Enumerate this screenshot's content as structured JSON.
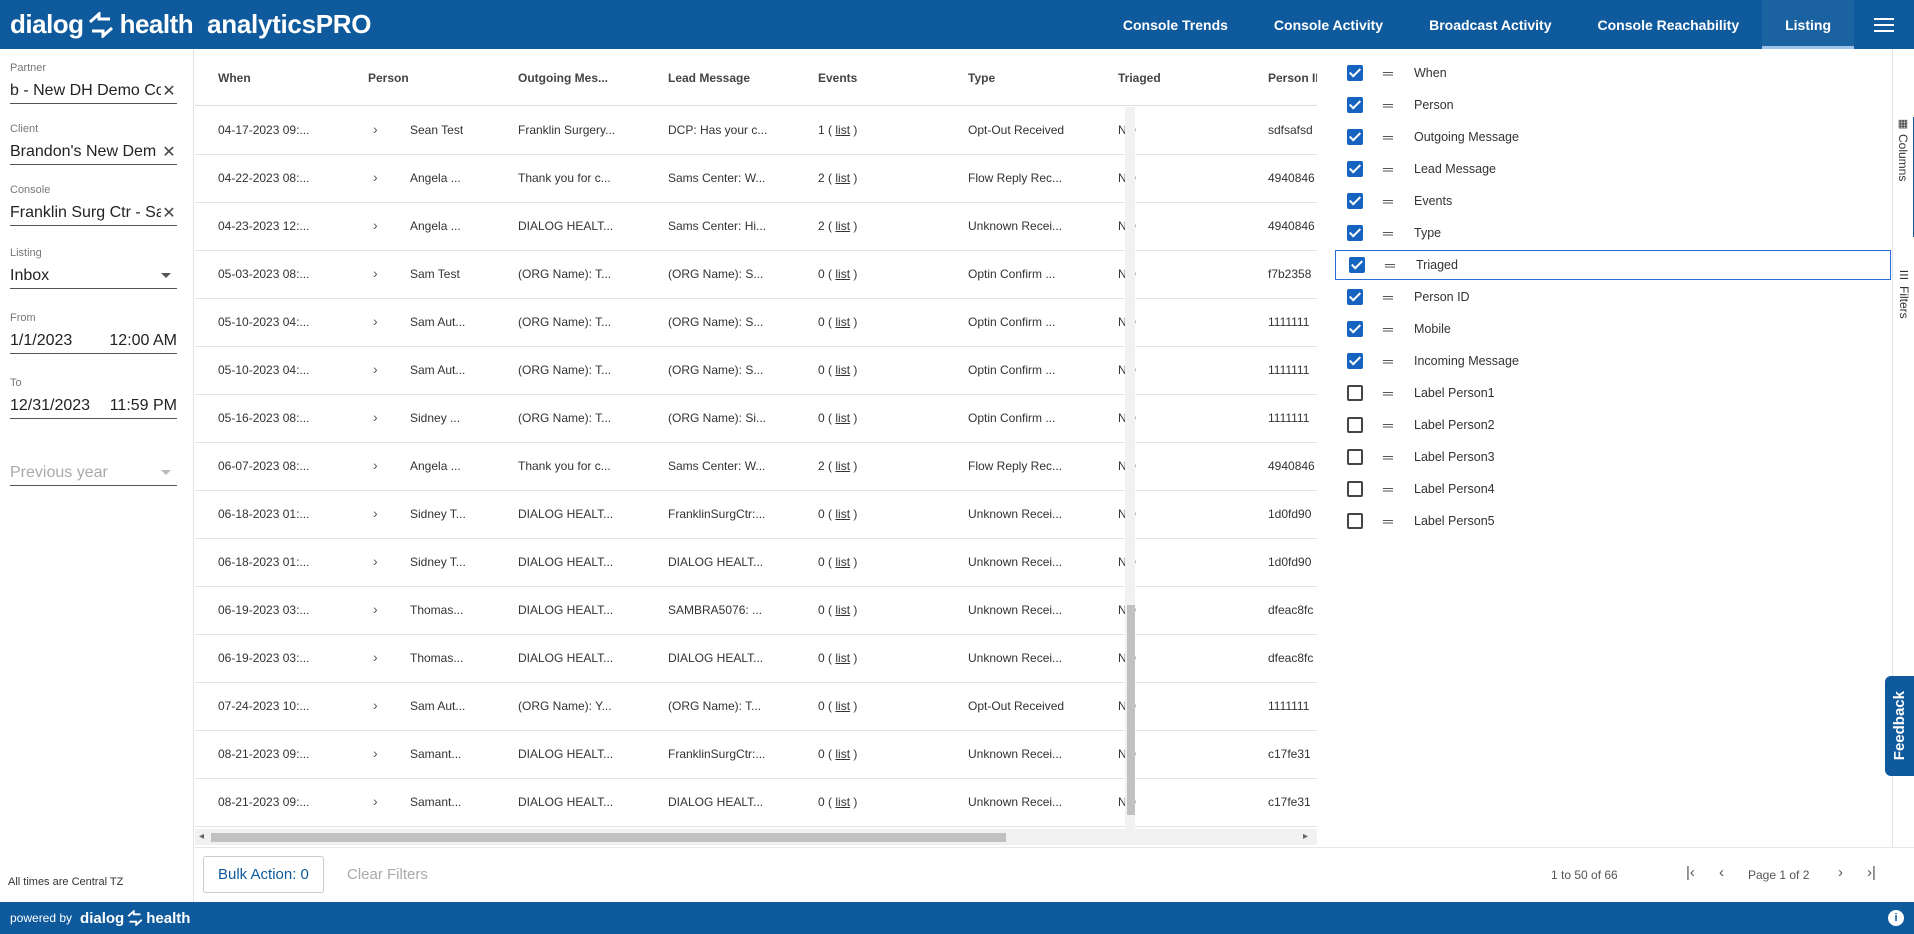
{
  "brand": {
    "dialog": "dialog",
    "health": "health",
    "suffix": "analyticsPRO"
  },
  "nav": {
    "items": [
      "Console Trends",
      "Console Activity",
      "Broadcast Activity",
      "Console Reachability",
      "Listing"
    ],
    "active": "Listing"
  },
  "sidebar": {
    "partner": {
      "label": "Partner",
      "value": "b - New DH Demo Co"
    },
    "client": {
      "label": "Client",
      "value": "Brandon's New Dem"
    },
    "console": {
      "label": "Console",
      "value": "Franklin Surg Ctr - Sa"
    },
    "listing": {
      "label": "Listing",
      "value": "Inbox"
    },
    "from": {
      "label": "From",
      "date": "1/1/2023",
      "time": "12:00 AM"
    },
    "to": {
      "label": "To",
      "date": "12/31/2023",
      "time": "11:59 PM"
    },
    "range": {
      "placeholder": "Previous year"
    },
    "tz_note": "All times are Central TZ"
  },
  "grid": {
    "headers": [
      "When",
      "Person",
      "Outgoing Mes...",
      "Lead Message",
      "Events",
      "Type",
      "Triaged",
      "Person ID"
    ],
    "rows": [
      {
        "when": "04-17-2023 09:...",
        "person": "Sean Test",
        "outgoing": "Franklin Surgery...",
        "lead": "DCP: Has your c...",
        "events": "1",
        "type": "Opt-Out Received",
        "triaged": "NO",
        "pid": "sdfsafsd"
      },
      {
        "when": "04-22-2023 08:...",
        "person": "Angela ...",
        "outgoing": "Thank you for c...",
        "lead": "Sams Center: W...",
        "events": "2",
        "type": "Flow Reply Rec...",
        "triaged": "NO",
        "pid": "4940846"
      },
      {
        "when": "04-23-2023 12:...",
        "person": "Angela ...",
        "outgoing": "DIALOG HEALT...",
        "lead": "Sams Center: Hi...",
        "events": "2",
        "type": "Unknown Recei...",
        "triaged": "NO",
        "pid": "4940846"
      },
      {
        "when": "05-03-2023 08:...",
        "person": "Sam Test",
        "outgoing": "(ORG Name): T...",
        "lead": "(ORG Name): S...",
        "events": "0",
        "type": "Optin Confirm ...",
        "triaged": "NO",
        "pid": "f7b2358"
      },
      {
        "when": "05-10-2023 04:...",
        "person": "Sam Aut...",
        "outgoing": "(ORG Name): T...",
        "lead": "(ORG Name): S...",
        "events": "0",
        "type": "Optin Confirm ...",
        "triaged": "NO",
        "pid": "1111111"
      },
      {
        "when": "05-10-2023 04:...",
        "person": "Sam Aut...",
        "outgoing": "(ORG Name): T...",
        "lead": "(ORG Name): S...",
        "events": "0",
        "type": "Optin Confirm ...",
        "triaged": "NO",
        "pid": "1111111"
      },
      {
        "when": "05-16-2023 08:...",
        "person": "Sidney ...",
        "outgoing": "(ORG Name): T...",
        "lead": "(ORG Name): Si...",
        "events": "0",
        "type": "Optin Confirm ...",
        "triaged": "NO",
        "pid": "1111111"
      },
      {
        "when": "06-07-2023 08:...",
        "person": "Angela ...",
        "outgoing": "Thank you for c...",
        "lead": "Sams Center: W...",
        "events": "2",
        "type": "Flow Reply Rec...",
        "triaged": "NO",
        "pid": "4940846"
      },
      {
        "when": "06-18-2023 01:...",
        "person": "Sidney T...",
        "outgoing": "DIALOG HEALT...",
        "lead": "FranklinSurgCtr:...",
        "events": "0",
        "type": "Unknown Recei...",
        "triaged": "NO",
        "pid": "1d0fd90"
      },
      {
        "when": "06-18-2023 01:...",
        "person": "Sidney T...",
        "outgoing": "DIALOG HEALT...",
        "lead": "DIALOG HEALT...",
        "events": "0",
        "type": "Unknown Recei...",
        "triaged": "NO",
        "pid": "1d0fd90"
      },
      {
        "when": "06-19-2023 03:...",
        "person": "Thomas...",
        "outgoing": "DIALOG HEALT...",
        "lead": "SAMBRA5076: ...",
        "events": "0",
        "type": "Unknown Recei...",
        "triaged": "NO",
        "pid": "dfeac8fc"
      },
      {
        "when": "06-19-2023 03:...",
        "person": "Thomas...",
        "outgoing": "DIALOG HEALT...",
        "lead": "DIALOG HEALT...",
        "events": "0",
        "type": "Unknown Recei...",
        "triaged": "NO",
        "pid": "dfeac8fc"
      },
      {
        "when": "07-24-2023 10:...",
        "person": "Sam Aut...",
        "outgoing": "(ORG Name): Y...",
        "lead": "(ORG Name): T...",
        "events": "0",
        "type": "Opt-Out Received",
        "triaged": "NO",
        "pid": "1111111"
      },
      {
        "when": "08-21-2023 09:...",
        "person": "Samant...",
        "outgoing": "DIALOG HEALT...",
        "lead": "FranklinSurgCtr:...",
        "events": "0",
        "type": "Unknown Recei...",
        "triaged": "NO",
        "pid": "c17fe31"
      },
      {
        "when": "08-21-2023 09:...",
        "person": "Samant...",
        "outgoing": "DIALOG HEALT...",
        "lead": "DIALOG HEALT...",
        "events": "0",
        "type": "Unknown Recei...",
        "triaged": "NO",
        "pid": "c17fe31"
      }
    ],
    "list_label": "list"
  },
  "columns_panel": {
    "items": [
      {
        "label": "When",
        "checked": true
      },
      {
        "label": "Person",
        "checked": true
      },
      {
        "label": "Outgoing Message",
        "checked": true
      },
      {
        "label": "Lead Message",
        "checked": true
      },
      {
        "label": "Events",
        "checked": true
      },
      {
        "label": "Type",
        "checked": true
      },
      {
        "label": "Triaged",
        "checked": true,
        "focused": true
      },
      {
        "label": "Person ID",
        "checked": true
      },
      {
        "label": "Mobile",
        "checked": true
      },
      {
        "label": "Incoming Message",
        "checked": true
      },
      {
        "label": "Label Person1",
        "checked": false
      },
      {
        "label": "Label Person2",
        "checked": false
      },
      {
        "label": "Label Person3",
        "checked": false
      },
      {
        "label": "Label Person4",
        "checked": false
      },
      {
        "label": "Label Person5",
        "checked": false
      }
    ]
  },
  "rail": {
    "columns": "Columns",
    "filters": "Filters",
    "feedback": "Feedback"
  },
  "bottom": {
    "bulk_action": "Bulk Action: 0",
    "clear_filters": "Clear Filters",
    "range": "1 to 50 of 66",
    "page": "Page 1 of 2"
  },
  "footer": {
    "powered_by": "powered by",
    "brand": "dialog",
    "brand2": "health"
  },
  "colors": {
    "primary": "#0f5a9c",
    "checkbox": "#1565c0",
    "focus": "#2b6ed6"
  }
}
